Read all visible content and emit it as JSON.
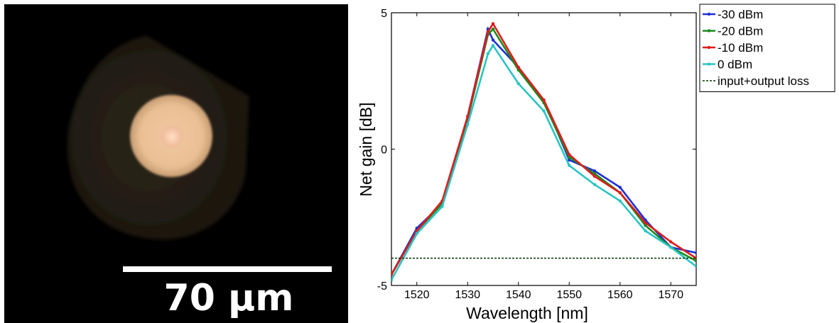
{
  "image_panel": {
    "scale_bar_label": "70 µm"
  },
  "chart_data": {
    "type": "line",
    "xlabel": "Wavelength [nm]",
    "ylabel": "Net gain [dB]",
    "xlim": [
      1515,
      1575
    ],
    "ylim": [
      -5,
      5
    ],
    "x_ticks": [
      "1520",
      "1530",
      "1540",
      "1550",
      "1560",
      "1570"
    ],
    "y_ticks": [
      "-5",
      "0",
      "5"
    ],
    "grid": false,
    "legend_position": "outside-right-top",
    "series": [
      {
        "name": "-30 dBm",
        "color": "#1f2fd6",
        "marker": true,
        "x": [
          1515,
          1520,
          1525,
          1530,
          1534,
          1535,
          1540,
          1545,
          1550,
          1555,
          1560,
          1565,
          1570,
          1575
        ],
        "y": [
          -4.6,
          -2.9,
          -2.0,
          1.2,
          4.4,
          4.0,
          3.0,
          1.8,
          -0.4,
          -0.8,
          -1.4,
          -2.6,
          -3.6,
          -3.8
        ]
      },
      {
        "name": "-20 dBm",
        "color": "#1a8a1a",
        "marker": true,
        "x": [
          1515,
          1520,
          1525,
          1530,
          1534,
          1535,
          1540,
          1545,
          1550,
          1555,
          1560,
          1565,
          1570,
          1575
        ],
        "y": [
          -4.6,
          -3.0,
          -2.0,
          1.1,
          4.2,
          4.4,
          2.9,
          1.7,
          -0.3,
          -0.9,
          -1.6,
          -2.8,
          -3.6,
          -4.1
        ]
      },
      {
        "name": "-10 dBm",
        "color": "#e01b1b",
        "marker": true,
        "x": [
          1515,
          1520,
          1525,
          1530,
          1534,
          1535,
          1540,
          1545,
          1550,
          1555,
          1560,
          1565,
          1570,
          1575
        ],
        "y": [
          -4.6,
          -3.0,
          -1.9,
          1.2,
          4.3,
          4.6,
          3.0,
          1.8,
          -0.2,
          -1.0,
          -1.6,
          -2.7,
          -3.4,
          -4.0
        ]
      },
      {
        "name": "0 dBm",
        "color": "#2ac4c4",
        "marker": true,
        "x": [
          1515,
          1520,
          1525,
          1530,
          1534,
          1535,
          1540,
          1545,
          1550,
          1555,
          1560,
          1565,
          1570,
          1575
        ],
        "y": [
          -4.8,
          -3.1,
          -2.1,
          0.9,
          3.5,
          3.8,
          2.4,
          1.4,
          -0.6,
          -1.3,
          -1.9,
          -3.0,
          -3.6,
          -4.3
        ]
      },
      {
        "name": "input+output loss",
        "color": "#003300",
        "marker": false,
        "x": [
          1515,
          1575
        ],
        "y": [
          -4.0,
          -4.0
        ]
      }
    ]
  }
}
